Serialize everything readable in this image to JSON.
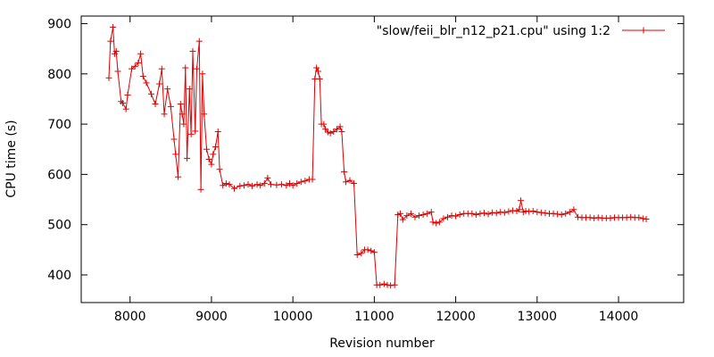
{
  "chart_data": {
    "type": "line",
    "title": "",
    "xlabel": "Revision number",
    "ylabel": "CPU time (s)",
    "xlim": [
      7400,
      14800
    ],
    "ylim": [
      345,
      915
    ],
    "x_ticks": [
      8000,
      9000,
      10000,
      11000,
      12000,
      13000,
      14000
    ],
    "y_ticks": [
      400,
      500,
      600,
      700,
      800,
      900
    ],
    "grid": false,
    "legend_position": "top-right",
    "marker": "plus",
    "color": "#e00000",
    "series": [
      {
        "name": "\"slow/feii_blr_n12_p21.cpu\" using 1:2",
        "points": [
          [
            7740,
            792
          ],
          [
            7760,
            865
          ],
          [
            7790,
            893
          ],
          [
            7810,
            840
          ],
          [
            7830,
            845
          ],
          [
            7850,
            805
          ],
          [
            7890,
            745
          ],
          [
            7910,
            742
          ],
          [
            7950,
            730
          ],
          [
            7970,
            758
          ],
          [
            8020,
            810
          ],
          [
            8060,
            815
          ],
          [
            8100,
            822
          ],
          [
            8130,
            840
          ],
          [
            8160,
            795
          ],
          [
            8200,
            782
          ],
          [
            8260,
            760
          ],
          [
            8310,
            740
          ],
          [
            8360,
            780
          ],
          [
            8390,
            810
          ],
          [
            8420,
            720
          ],
          [
            8460,
            770
          ],
          [
            8500,
            735
          ],
          [
            8540,
            670
          ],
          [
            8560,
            640
          ],
          [
            8590,
            595
          ],
          [
            8620,
            740
          ],
          [
            8640,
            720
          ],
          [
            8660,
            700
          ],
          [
            8680,
            812
          ],
          [
            8700,
            632
          ],
          [
            8730,
            770
          ],
          [
            8750,
            680
          ],
          [
            8770,
            845
          ],
          [
            8800,
            686
          ],
          [
            8820,
            810
          ],
          [
            8850,
            865
          ],
          [
            8870,
            570
          ],
          [
            8890,
            800
          ],
          [
            8910,
            720
          ],
          [
            8940,
            650
          ],
          [
            8970,
            630
          ],
          [
            9000,
            620
          ],
          [
            9020,
            640
          ],
          [
            9050,
            655
          ],
          [
            9080,
            685
          ],
          [
            9100,
            610
          ],
          [
            9140,
            578
          ],
          [
            9180,
            582
          ],
          [
            9220,
            580
          ],
          [
            9280,
            572
          ],
          [
            9350,
            577
          ],
          [
            9400,
            578
          ],
          [
            9450,
            580
          ],
          [
            9500,
            577
          ],
          [
            9560,
            580
          ],
          [
            9600,
            578
          ],
          [
            9650,
            582
          ],
          [
            9690,
            593
          ],
          [
            9730,
            580
          ],
          [
            9800,
            579
          ],
          [
            9860,
            580
          ],
          [
            9920,
            578
          ],
          [
            9960,
            582
          ],
          [
            10000,
            578
          ],
          [
            10050,
            582
          ],
          [
            10100,
            585
          ],
          [
            10150,
            587
          ],
          [
            10200,
            590
          ],
          [
            10240,
            590
          ],
          [
            10270,
            790
          ],
          [
            10290,
            812
          ],
          [
            10310,
            805
          ],
          [
            10330,
            790
          ],
          [
            10350,
            700
          ],
          [
            10380,
            700
          ],
          [
            10400,
            690
          ],
          [
            10430,
            684
          ],
          [
            10460,
            682
          ],
          [
            10500,
            685
          ],
          [
            10540,
            690
          ],
          [
            10580,
            695
          ],
          [
            10600,
            685
          ],
          [
            10630,
            605
          ],
          [
            10650,
            585
          ],
          [
            10700,
            588
          ],
          [
            10750,
            582
          ],
          [
            10790,
            440
          ],
          [
            10840,
            443
          ],
          [
            10880,
            450
          ],
          [
            10920,
            450
          ],
          [
            10960,
            448
          ],
          [
            11000,
            445
          ],
          [
            11030,
            380
          ],
          [
            11070,
            380
          ],
          [
            11120,
            382
          ],
          [
            11160,
            380
          ],
          [
            11200,
            379
          ],
          [
            11250,
            380
          ],
          [
            11290,
            520
          ],
          [
            11320,
            522
          ],
          [
            11350,
            510
          ],
          [
            11400,
            518
          ],
          [
            11450,
            522
          ],
          [
            11500,
            515
          ],
          [
            11550,
            518
          ],
          [
            11600,
            520
          ],
          [
            11650,
            522
          ],
          [
            11700,
            525
          ],
          [
            11720,
            505
          ],
          [
            11760,
            503
          ],
          [
            11800,
            505
          ],
          [
            11850,
            512
          ],
          [
            11900,
            515
          ],
          [
            11950,
            518
          ],
          [
            12000,
            517
          ],
          [
            12050,
            520
          ],
          [
            12100,
            522
          ],
          [
            12150,
            522
          ],
          [
            12200,
            522
          ],
          [
            12250,
            520
          ],
          [
            12300,
            522
          ],
          [
            12350,
            523
          ],
          [
            12400,
            521
          ],
          [
            12450,
            524
          ],
          [
            12500,
            523
          ],
          [
            12550,
            525
          ],
          [
            12600,
            524
          ],
          [
            12650,
            526
          ],
          [
            12700,
            528
          ],
          [
            12750,
            527
          ],
          [
            12780,
            530
          ],
          [
            12800,
            548
          ],
          [
            12830,
            525
          ],
          [
            12860,
            527
          ],
          [
            12900,
            526
          ],
          [
            12950,
            527
          ],
          [
            13000,
            525
          ],
          [
            13050,
            524
          ],
          [
            13100,
            523
          ],
          [
            13150,
            522
          ],
          [
            13200,
            522
          ],
          [
            13250,
            521
          ],
          [
            13300,
            520
          ],
          [
            13350,
            522
          ],
          [
            13400,
            525
          ],
          [
            13450,
            530
          ],
          [
            13500,
            515
          ],
          [
            13550,
            514
          ],
          [
            13600,
            514
          ],
          [
            13650,
            514
          ],
          [
            13700,
            513
          ],
          [
            13750,
            514
          ],
          [
            13800,
            513
          ],
          [
            13850,
            513
          ],
          [
            13900,
            513
          ],
          [
            13950,
            514
          ],
          [
            14000,
            514
          ],
          [
            14050,
            514
          ],
          [
            14100,
            514
          ],
          [
            14150,
            515
          ],
          [
            14200,
            514
          ],
          [
            14250,
            514
          ],
          [
            14300,
            512
          ],
          [
            14340,
            511
          ]
        ]
      }
    ]
  }
}
